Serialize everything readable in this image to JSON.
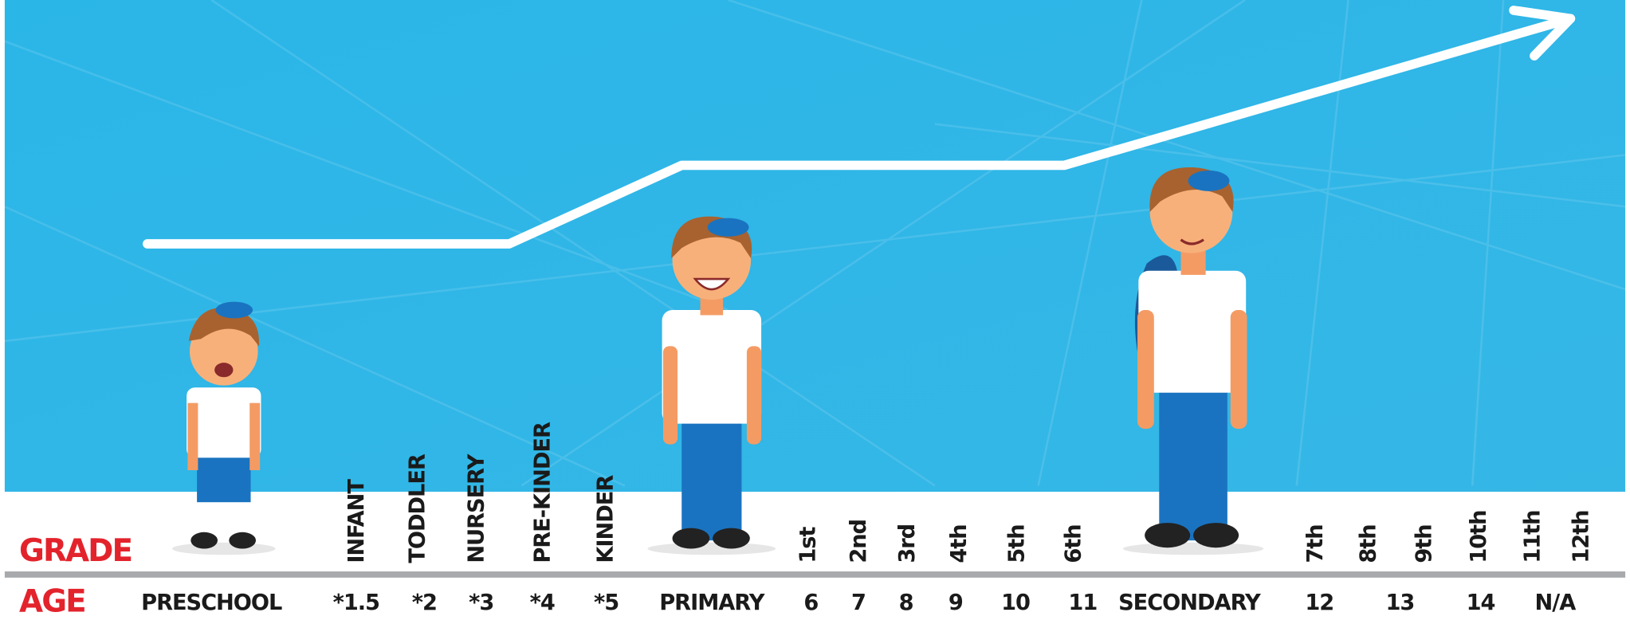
{
  "labels": {
    "grade": "GRADE",
    "age": "AGE"
  },
  "stages": [
    "PRESCHOOL",
    "PRIMARY",
    "SECONDARY"
  ],
  "grades": [
    "INFANT",
    "TODDLER",
    "NURSERY",
    "PRE-KINDER",
    "KINDER",
    "1st",
    "2nd",
    "3rd",
    "4th",
    "5th",
    "6th",
    "7th",
    "8th",
    "9th",
    "10th",
    "11th",
    "12th"
  ],
  "ages": [
    "*1.5",
    "*2",
    "*3",
    "*4",
    "*5",
    "6",
    "7",
    "8",
    "9",
    "10",
    "11",
    "12",
    "13",
    "14",
    "N/A"
  ]
}
